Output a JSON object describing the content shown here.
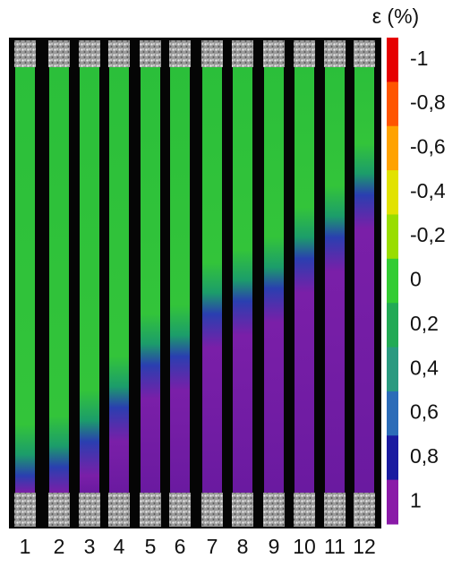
{
  "colorbar": {
    "title": "ε (%)",
    "labels": [
      "-1",
      "-0,8",
      "-0,6",
      "-0,4",
      "-0,2",
      "0",
      "0,2",
      "0,4",
      "0,6",
      "0,8",
      "1"
    ]
  },
  "specimens": [
    "1",
    "2",
    "3",
    "4",
    "5",
    "6",
    "7",
    "8",
    "9",
    "10",
    "11",
    "12"
  ]
}
